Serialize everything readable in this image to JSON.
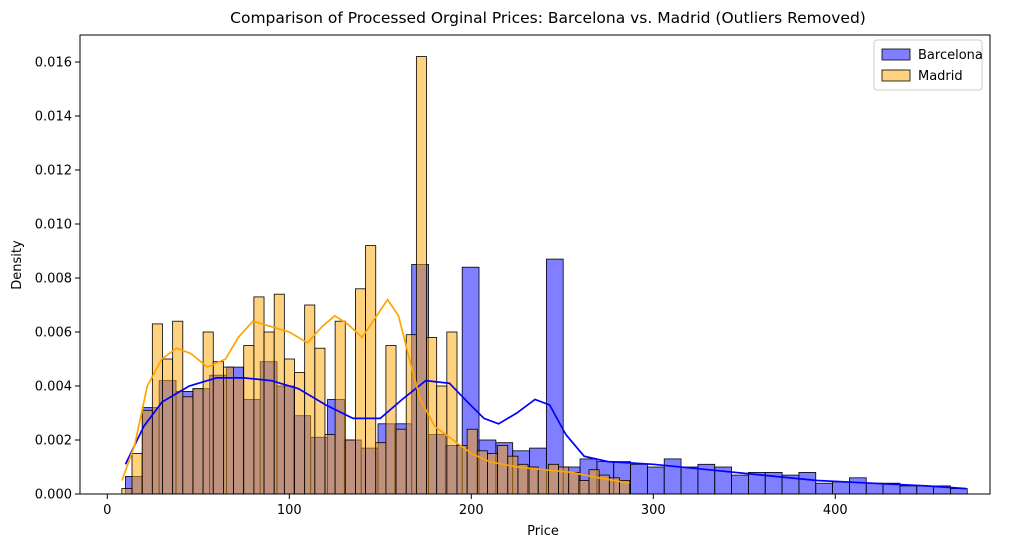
{
  "chart_data": {
    "type": "histogram",
    "title": "Comparison of Processed Orginal Prices: Barcelona vs. Madrid (Outliers Removed)",
    "xlabel": "Price",
    "ylabel": "Density",
    "xlim": [
      -15,
      485
    ],
    "ylim": [
      0,
      0.017
    ],
    "xticks": [
      0,
      100,
      200,
      300,
      400
    ],
    "yticks": [
      0.0,
      0.002,
      0.004,
      0.006,
      0.008,
      0.01,
      0.012,
      0.014,
      0.016
    ],
    "ytick_labels": [
      "0.000",
      "0.002",
      "0.004",
      "0.006",
      "0.008",
      "0.010",
      "0.012",
      "0.014",
      "0.016"
    ],
    "grid": false,
    "legend_position": "top-right",
    "series": [
      {
        "name": "Barcelona",
        "color": "#0000ff",
        "bar_alpha": 0.5,
        "bin_start": 10,
        "bin_width": 9.25,
        "values": [
          0.00065,
          0.0032,
          0.0042,
          0.0038,
          0.0039,
          0.0044,
          0.0047,
          0.0035,
          0.0049,
          0.004,
          0.0029,
          0.0021,
          0.0035,
          0.002,
          0.0017,
          0.0026,
          0.0026,
          0.0085,
          0.0022,
          0.0018,
          0.0084,
          0.002,
          0.0019,
          0.0016,
          0.0017,
          0.0087,
          0.001,
          0.0013,
          0.0012,
          0.0012,
          0.0011,
          0.001,
          0.0013,
          0.001,
          0.0011,
          0.001,
          0.0007,
          0.0008,
          0.0008,
          0.0007,
          0.0008,
          0.0004,
          0.00045,
          0.0006,
          0.0004,
          0.0004,
          0.0003,
          0.0003,
          0.0003,
          0.0002
        ],
        "kde": [
          [
            10,
            0.0011
          ],
          [
            20,
            0.0025
          ],
          [
            30,
            0.0034
          ],
          [
            45,
            0.004
          ],
          [
            60,
            0.0043
          ],
          [
            75,
            0.0043
          ],
          [
            90,
            0.0042
          ],
          [
            105,
            0.0039
          ],
          [
            120,
            0.0033
          ],
          [
            135,
            0.0028
          ],
          [
            150,
            0.0028
          ],
          [
            162,
            0.0035
          ],
          [
            175,
            0.0042
          ],
          [
            188,
            0.0041
          ],
          [
            198,
            0.0034
          ],
          [
            207,
            0.0028
          ],
          [
            215,
            0.0026
          ],
          [
            225,
            0.003
          ],
          [
            235,
            0.0035
          ],
          [
            243,
            0.0033
          ],
          [
            252,
            0.0022
          ],
          [
            262,
            0.0014
          ],
          [
            275,
            0.0012
          ],
          [
            300,
            0.0011
          ],
          [
            330,
            0.0009
          ],
          [
            360,
            0.0007
          ],
          [
            390,
            0.0005
          ],
          [
            420,
            0.0004
          ],
          [
            450,
            0.0003
          ],
          [
            472,
            0.0002
          ]
        ]
      },
      {
        "name": "Madrid",
        "color": "#ffa500",
        "bar_alpha": 0.5,
        "bin_start": 8,
        "bin_width": 5.58,
        "values": [
          0.0002,
          0.0015,
          0.0031,
          0.0063,
          0.005,
          0.0064,
          0.0036,
          0.0039,
          0.006,
          0.0049,
          0.0047,
          0.0043,
          0.0055,
          0.0073,
          0.006,
          0.0074,
          0.005,
          0.0045,
          0.007,
          0.0054,
          0.0022,
          0.0064,
          0.002,
          0.0076,
          0.0092,
          0.0019,
          0.0055,
          0.0024,
          0.0059,
          0.0162,
          0.0058,
          0.004,
          0.006,
          0.0018,
          0.0024,
          0.0016,
          0.0015,
          0.0018,
          0.0014,
          0.0011,
          0.001,
          0.0009,
          0.0011,
          0.001,
          0.0008,
          0.0005,
          0.0009,
          0.0007,
          0.0006,
          0.0005
        ]
      }
    ],
    "madrid_kde": [
      [
        8,
        0.0005
      ],
      [
        15,
        0.0018
      ],
      [
        22,
        0.004
      ],
      [
        30,
        0.005
      ],
      [
        38,
        0.0054
      ],
      [
        46,
        0.0052
      ],
      [
        55,
        0.0047
      ],
      [
        65,
        0.005
      ],
      [
        72,
        0.0058
      ],
      [
        80,
        0.0064
      ],
      [
        90,
        0.0062
      ],
      [
        100,
        0.006
      ],
      [
        110,
        0.0056
      ],
      [
        118,
        0.0062
      ],
      [
        125,
        0.0066
      ],
      [
        132,
        0.0063
      ],
      [
        140,
        0.0058
      ],
      [
        148,
        0.0066
      ],
      [
        154,
        0.0072
      ],
      [
        160,
        0.0066
      ],
      [
        166,
        0.005
      ],
      [
        172,
        0.0035
      ],
      [
        180,
        0.0025
      ],
      [
        190,
        0.002
      ],
      [
        200,
        0.0015
      ],
      [
        210,
        0.0012
      ],
      [
        225,
        0.001
      ],
      [
        240,
        0.0009
      ],
      [
        255,
        0.0008
      ],
      [
        270,
        0.0006
      ],
      [
        287,
        0.0004
      ]
    ]
  }
}
